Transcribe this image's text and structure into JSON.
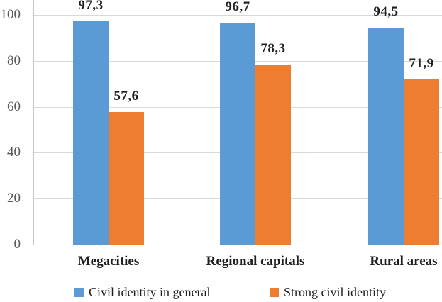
{
  "chart_data": {
    "type": "bar",
    "title": "",
    "xlabel": "",
    "ylabel": "",
    "categories": [
      "Megacities",
      "Regional capitals",
      "Rural areas"
    ],
    "series": [
      {
        "name": "Civil identity in general",
        "color": "#5B9BD5",
        "values": [
          97.3,
          96.7,
          94.5
        ],
        "labels": [
          "97,3",
          "96,7",
          "94,5"
        ]
      },
      {
        "name": "Strong civil identity",
        "color": "#ED7D31",
        "values": [
          57.6,
          78.3,
          71.9
        ],
        "labels": [
          "57,6",
          "78,3",
          "71,9"
        ]
      }
    ],
    "ylim": [
      0,
      100
    ],
    "yticks": [
      0,
      20,
      40,
      60,
      80,
      100
    ],
    "grid": true,
    "legend_position": "bottom",
    "decimal_separator": ",",
    "colors": {
      "gridline": "#D9D9D9",
      "axis_line": "#C6C6C6",
      "tick_label": "#595959",
      "data_label": "#1F1F1F",
      "background": "#FFFFFF"
    }
  }
}
